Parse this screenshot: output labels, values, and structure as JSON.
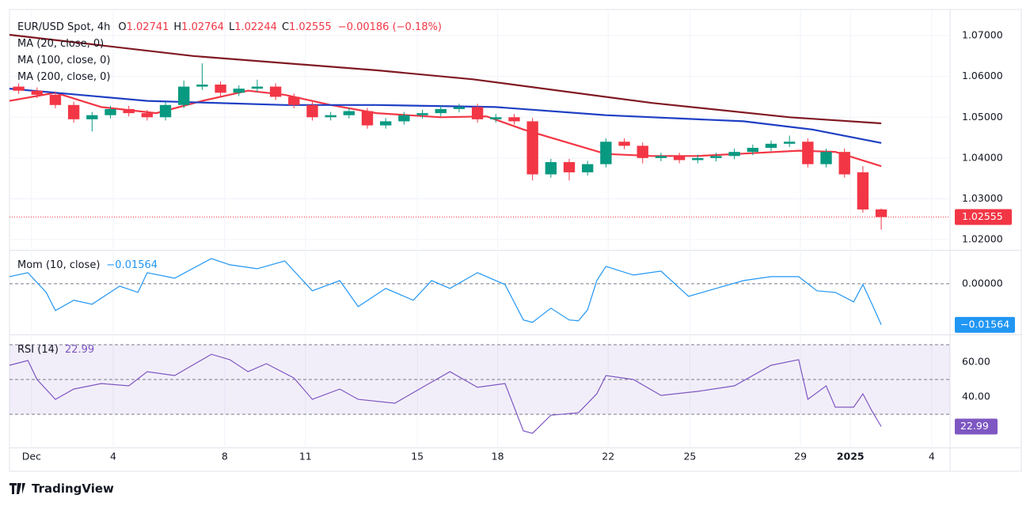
{
  "x_axis": {
    "xlim": [
      0,
      205
    ],
    "xticks": [
      {
        "value": 4.8,
        "label": "Dec"
      },
      {
        "value": 22.6,
        "label": "4"
      },
      {
        "value": 46.9,
        "label": "8"
      },
      {
        "value": 64.5,
        "label": "11"
      },
      {
        "value": 88.9,
        "label": "15"
      },
      {
        "value": 106.4,
        "label": "18"
      },
      {
        "value": 130.5,
        "label": "22"
      },
      {
        "value": 148.3,
        "label": "25"
      },
      {
        "value": 172.4,
        "label": "29"
      },
      {
        "value": 183.3,
        "label": "2025",
        "bold": true
      },
      {
        "value": 201,
        "label": "4"
      }
    ]
  },
  "footer": "TradingView",
  "chart_data": [
    {
      "type": "candlestick",
      "title": "EUR/USD Spot, 4h",
      "ohlc_letters": [
        "O",
        "H",
        "L",
        "C"
      ],
      "change": "−0.00186 (−0.18%)",
      "up_color": "#089981",
      "down_color": "#f23645",
      "x": [
        2,
        6,
        10,
        14,
        18,
        22,
        26,
        30,
        34,
        38,
        42,
        46,
        50,
        54,
        58,
        62,
        66,
        70,
        74,
        78,
        82,
        86,
        90,
        94,
        98,
        102,
        106,
        110,
        114,
        118,
        122,
        126,
        130,
        134,
        138,
        142,
        146,
        150,
        154,
        158,
        162,
        166,
        170,
        174,
        178,
        182,
        186,
        190
      ],
      "open": [
        1.0575,
        1.0565,
        1.0555,
        1.053,
        1.0495,
        1.0505,
        1.052,
        1.051,
        1.05,
        1.053,
        1.0575,
        1.058,
        1.056,
        1.057,
        1.0575,
        1.055,
        1.053,
        1.05,
        1.0505,
        1.0515,
        1.048,
        1.049,
        1.0505,
        1.051,
        1.052,
        1.0525,
        1.0495,
        1.05,
        1.049,
        1.036,
        1.039,
        1.0365,
        1.0385,
        1.044,
        1.043,
        1.04,
        1.0405,
        1.0395,
        1.04,
        1.0405,
        1.0415,
        1.0425,
        1.0435,
        1.044,
        1.0385,
        1.0415,
        1.0365,
        1.02741
      ],
      "high": [
        1.0583,
        1.0573,
        1.0563,
        1.0538,
        1.0513,
        1.0528,
        1.0528,
        1.0518,
        1.0538,
        1.059,
        1.0632,
        1.0588,
        1.0578,
        1.0592,
        1.0583,
        1.0558,
        1.0538,
        1.0513,
        1.0523,
        1.0523,
        1.0498,
        1.0513,
        1.0518,
        1.0528,
        1.0533,
        1.0533,
        1.0508,
        1.0508,
        1.0498,
        1.0398,
        1.0398,
        1.0393,
        1.0448,
        1.0448,
        1.0438,
        1.0413,
        1.0413,
        1.0408,
        1.0413,
        1.0423,
        1.0433,
        1.0443,
        1.0455,
        1.0448,
        1.0423,
        1.0423,
        1.038,
        1.02764
      ],
      "low": [
        1.0557,
        1.0547,
        1.0522,
        1.0487,
        1.0465,
        1.0497,
        1.0502,
        1.0492,
        1.0492,
        1.0522,
        1.0567,
        1.0552,
        1.0552,
        1.0562,
        1.0542,
        1.0522,
        1.0492,
        1.0492,
        1.0497,
        1.0472,
        1.0472,
        1.0482,
        1.0497,
        1.0502,
        1.0512,
        1.0487,
        1.0487,
        1.0482,
        1.0345,
        1.0352,
        1.0345,
        1.0357,
        1.0377,
        1.0422,
        1.0387,
        1.0392,
        1.0387,
        1.0387,
        1.0392,
        1.0397,
        1.0407,
        1.0417,
        1.0427,
        1.0377,
        1.0377,
        1.0352,
        1.0266,
        1.02244
      ],
      "close": [
        1.0565,
        1.0555,
        1.053,
        1.0495,
        1.0505,
        1.052,
        1.051,
        1.05,
        1.053,
        1.0575,
        1.058,
        1.056,
        1.057,
        1.0575,
        1.055,
        1.053,
        1.05,
        1.0505,
        1.0515,
        1.048,
        1.049,
        1.0505,
        1.051,
        1.052,
        1.0525,
        1.0495,
        1.05,
        1.049,
        1.036,
        1.039,
        1.0365,
        1.0385,
        1.044,
        1.043,
        1.04,
        1.0405,
        1.0395,
        1.04,
        1.0405,
        1.0415,
        1.0425,
        1.0435,
        1.044,
        1.0385,
        1.0415,
        1.036,
        1.0274,
        1.02555
      ],
      "series": [
        {
          "name": "MA (20, close, 0)",
          "color": "#f23645",
          "x": [
            0,
            10,
            20,
            32,
            42,
            52,
            60,
            70,
            80,
            94,
            104,
            112,
            124,
            130,
            140,
            150,
            162,
            172,
            180,
            190
          ],
          "values": [
            1.054,
            1.056,
            1.0525,
            1.051,
            1.054,
            1.0565,
            1.0555,
            1.053,
            1.051,
            1.05,
            1.0502,
            1.047,
            1.043,
            1.041,
            1.0405,
            1.0405,
            1.0412,
            1.0418,
            1.0415,
            1.038
          ]
        },
        {
          "name": "MA (100, close, 0)",
          "color": "#1e3fc4",
          "x": [
            0,
            30,
            60,
            80,
            106,
            130,
            160,
            175,
            190
          ],
          "values": [
            1.057,
            1.054,
            1.053,
            1.053,
            1.0525,
            1.0505,
            1.049,
            1.047,
            1.0437
          ]
        },
        {
          "name": "MA (200, close, 0)",
          "color": "#801922",
          "x": [
            0,
            40,
            80,
            101,
            140,
            170,
            190
          ],
          "values": [
            1.0702,
            1.065,
            1.0615,
            1.0593,
            1.0535,
            1.05,
            1.0485
          ]
        }
      ],
      "ylim": [
        1.0177,
        1.0764
      ],
      "yticks": [
        {
          "value": 1.02,
          "label": "1.02000"
        },
        {
          "value": 1.03,
          "label": "1.03000"
        },
        {
          "value": 1.04,
          "label": "1.04000"
        },
        {
          "value": 1.05,
          "label": "1.05000"
        },
        {
          "value": 1.06,
          "label": "1.06000"
        },
        {
          "value": 1.07,
          "label": "1.07000"
        }
      ],
      "grid": true
    },
    {
      "type": "line",
      "title": "Mom (10, close)",
      "color": "#2196f3",
      "last_value_label": "−0.01564",
      "x": [
        0,
        4,
        8,
        10,
        14,
        18,
        24,
        28,
        30,
        36,
        44,
        48,
        54,
        60,
        66,
        72,
        76,
        82,
        88,
        92,
        96,
        102,
        108,
        112,
        114,
        118,
        122,
        124,
        126,
        128,
        130,
        136,
        142,
        148,
        154,
        160,
        166,
        172,
        176,
        180,
        184,
        186,
        188,
        190
      ],
      "values": [
        0.0027,
        0.0042,
        -0.0033,
        -0.0102,
        -0.0063,
        -0.0078,
        -0.0009,
        -0.0033,
        0.0042,
        0.0021,
        0.0096,
        0.0072,
        0.0057,
        0.0087,
        -0.0027,
        0.0012,
        -0.0087,
        -0.0018,
        -0.0063,
        0.0012,
        -0.0018,
        0.0042,
        -0.0003,
        -0.0138,
        -0.0147,
        -0.0093,
        -0.0138,
        -0.0141,
        -0.0099,
        0.0012,
        0.0066,
        0.0033,
        0.0048,
        -0.0048,
        -0.0018,
        0.0012,
        0.0027,
        0.0027,
        -0.0027,
        -0.0033,
        -0.0069,
        -0.0003,
        -0.0078,
        -0.01564
      ],
      "ylim": [
        -0.019,
        0.0123
      ],
      "yticks": [
        {
          "value": 0,
          "label": "0.00000"
        }
      ],
      "hlines": [
        0
      ]
    },
    {
      "type": "line",
      "title": "RSI (14)",
      "color": "#7e57c2",
      "x": [
        0,
        4,
        6,
        10,
        14,
        20,
        26,
        30,
        36,
        44,
        48,
        52,
        56,
        62,
        66,
        72,
        76,
        84,
        90,
        96,
        102,
        108,
        112,
        114,
        118,
        124,
        128,
        130,
        136,
        142,
        150,
        158,
        166,
        172,
        174,
        178,
        180,
        184,
        186,
        188,
        190
      ],
      "values": [
        58.2,
        60.9,
        50,
        38.6,
        44.5,
        47.7,
        46.4,
        54.5,
        52.3,
        64.5,
        61.4,
        54.5,
        59.1,
        50.9,
        38.6,
        44.5,
        38.6,
        36.4,
        45.5,
        54.5,
        45.5,
        47.7,
        20.5,
        19.1,
        29.5,
        30.9,
        41.8,
        52.3,
        50,
        40.9,
        43.2,
        46.4,
        58.2,
        61.4,
        38.6,
        46.4,
        34.1,
        34.1,
        41.8,
        31.8,
        22.99
      ],
      "ylim": [
        11.4,
        75
      ],
      "yticks": [
        {
          "value": 40,
          "label": "40.00"
        },
        {
          "value": 60,
          "label": "60.00"
        }
      ],
      "band": [
        30,
        70
      ],
      "hlines": [
        70,
        50,
        30
      ]
    }
  ]
}
